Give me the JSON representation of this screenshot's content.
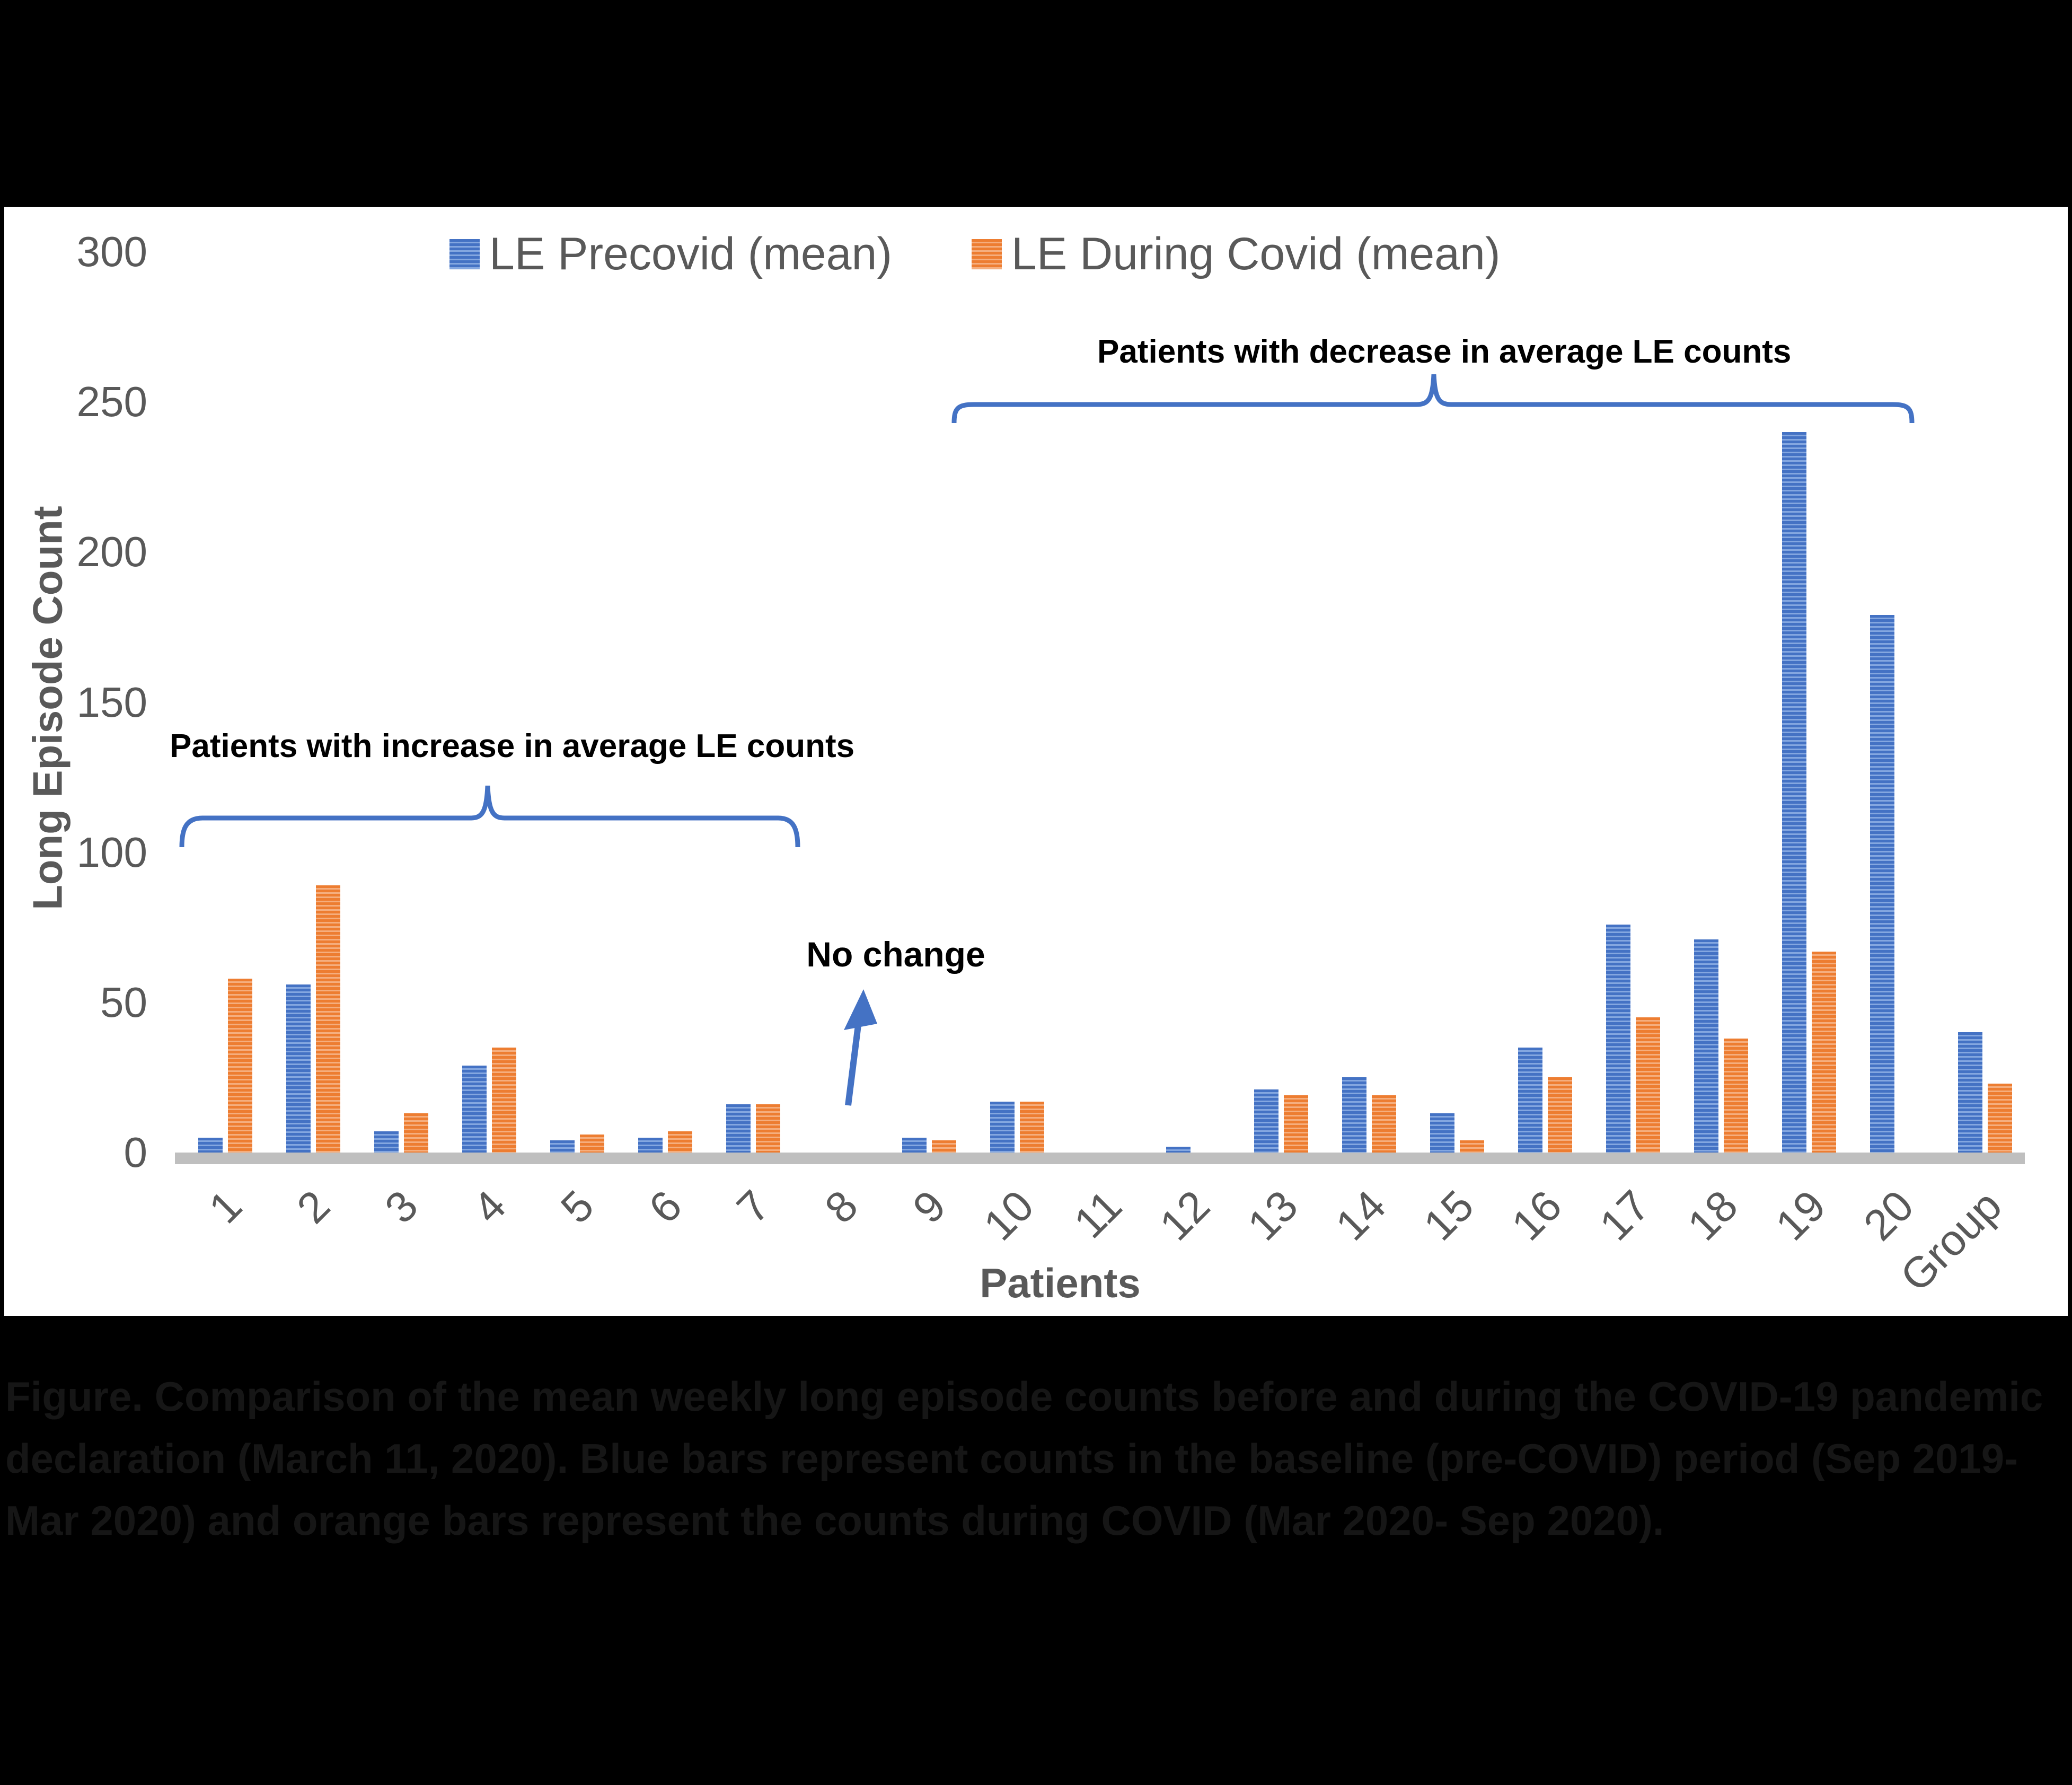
{
  "annotations": {
    "increase": "Patients with increase in average LE counts",
    "decrease": "Patients with decrease in average LE counts",
    "no_change": "No change"
  },
  "caption": {
    "lines": [
      "Figure. Comparison of the mean weekly long episode counts before and during the COVID-19 pandemic",
      "declaration (March 11, 2020). Blue bars represent counts in the baseline (pre-COVID) period (Sep 2019-",
      "Mar 2020) and orange bars represent the counts during COVID (Mar 2020- Sep 2020)."
    ]
  },
  "colors": {
    "precovid_blue": "#4472C4",
    "during_orange": "#ED7D31",
    "axis_text_gray": "#595959",
    "baseline_gray": "#BFBFBF",
    "brace_blue": "#4472C4"
  },
  "chart_data": {
    "type": "bar",
    "title": "",
    "xlabel": "Patients",
    "ylabel": "Long Episode Count",
    "ylim": [
      0,
      300
    ],
    "yticks": [
      0,
      50,
      100,
      150,
      200,
      250,
      300
    ],
    "grid": false,
    "legend_position": "top-center",
    "categories": [
      "1",
      "2",
      "3",
      "4",
      "5",
      "6",
      "7",
      "8",
      "9",
      "10",
      "11",
      "12",
      "13",
      "14",
      "15",
      "16",
      "17",
      "18",
      "19",
      "20",
      "Group"
    ],
    "series": [
      {
        "name": "LE Precovid (mean)",
        "color": "#4472C4",
        "values": [
          5,
          56,
          7,
          29,
          4,
          5,
          16,
          0,
          5,
          17,
          0,
          2,
          21,
          25,
          13,
          35,
          76,
          71,
          240,
          179,
          40
        ]
      },
      {
        "name": "LE During Covid (mean)",
        "color": "#ED7D31",
        "values": [
          58,
          89,
          13,
          35,
          6,
          7,
          16,
          0,
          4,
          17,
          0,
          0,
          19,
          19,
          4,
          25,
          45,
          38,
          67,
          0,
          23
        ]
      }
    ]
  }
}
